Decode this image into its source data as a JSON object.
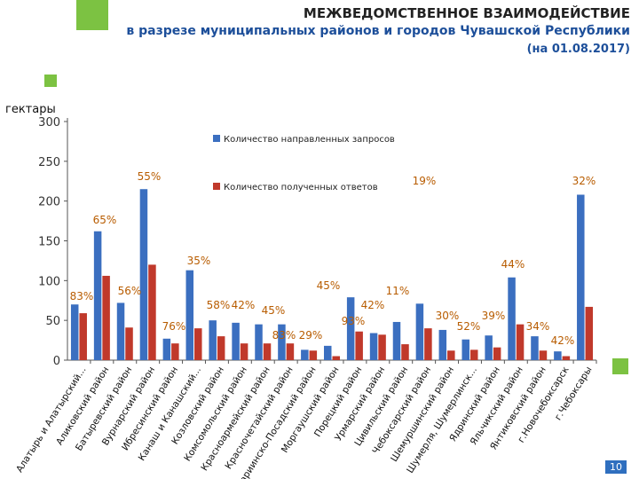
{
  "header": {
    "title": "МЕЖВЕДОМСТВЕННОЕ ВЗАИМОДЕЙСТВИЕ",
    "subtitle": "в разрезе муниципальных районов и городов Чувашской Республики",
    "date": "(на 01.08.2017)"
  },
  "unit_label": "гектары",
  "page_number": "10",
  "colors": {
    "accent_green": "#7cc242",
    "sent": "#3b6fc0",
    "received": "#c0392b",
    "pct": "#b85c00"
  },
  "chart_data": {
    "type": "bar",
    "title": "",
    "xlabel": "",
    "ylabel": "гектары",
    "ylim": [
      0,
      300
    ],
    "yticks": [
      0,
      50,
      100,
      150,
      200,
      250,
      300
    ],
    "grid": false,
    "legend": "top-right",
    "categories": [
      "Алатырь и Алатырский...",
      "Аликовский район",
      "Батыревский район",
      "Вурнарский район",
      "Ибресинский район",
      "Канаш и Канашский...",
      "Козловский район",
      "Комсомольский район",
      "Красноармейский район",
      "Красночетайский район",
      "Мариинско-Посадский район",
      "Моргаушский район",
      "Порецкий район",
      "Урмарский район",
      "Цивильский район",
      "Чебоксарский район",
      "Шемуршинский район",
      "Шумерля, Шумерлинск...",
      "Ядринский район",
      "Яльчикский район",
      "Янтиковский район",
      "г.Новочебоксарск",
      "г.Чебоксары"
    ],
    "series": [
      {
        "name": "Количество направленных запросов",
        "values": [
          70,
          162,
          72,
          215,
          27,
          113,
          50,
          47,
          45,
          45,
          13,
          18,
          79,
          34,
          48,
          71,
          38,
          26,
          31,
          104,
          30,
          11,
          208
        ]
      },
      {
        "name": "Количество полученных ответов",
        "values": [
          59,
          106,
          41,
          120,
          21,
          40,
          30,
          21,
          21,
          21,
          12,
          5,
          36,
          32,
          20,
          40,
          12,
          13,
          16,
          45,
          12,
          5,
          67
        ]
      }
    ],
    "annotations": [
      "83%",
      "65%",
      "56%",
      "55%",
      "76%",
      "35%",
      "58%",
      "42%",
      "45%",
      "83%",
      "29%",
      "45%",
      "93%",
      "42%",
      "11%",
      "19%",
      "30%",
      "52%",
      "39%",
      "34%",
      "42%",
      "44%",
      "32%"
    ]
  }
}
